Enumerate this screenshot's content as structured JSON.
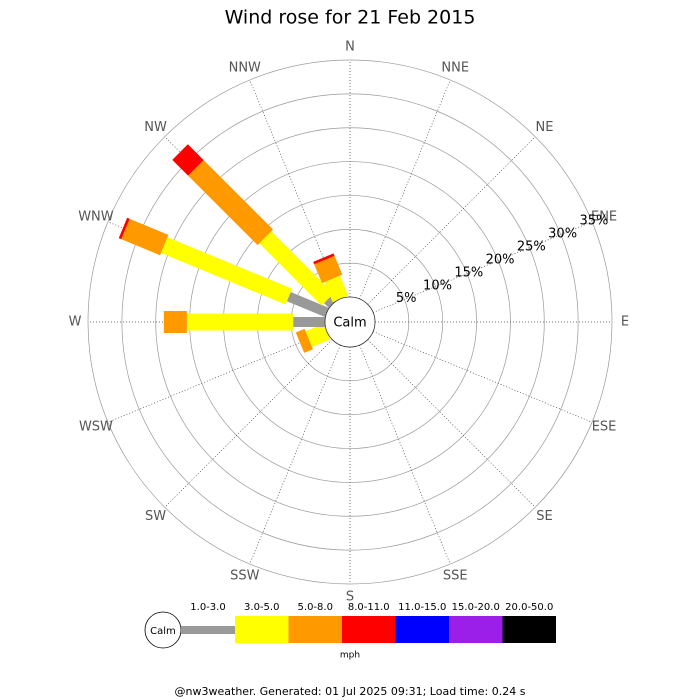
{
  "chart_data": {
    "type": "windrose",
    "title": "Wind rose for 21 Feb 2015",
    "categories": [
      "N",
      "NNE",
      "NE",
      "ENE",
      "E",
      "ESE",
      "SE",
      "SSE",
      "S",
      "SSW",
      "SW",
      "WSW",
      "W",
      "WNW",
      "NW",
      "NNW"
    ],
    "series": [
      {
        "name": "1.0-3.0",
        "color": "#999999",
        "values": [
          0,
          0,
          0,
          0,
          0,
          0,
          0,
          0,
          0,
          0,
          0,
          0,
          4.7,
          6.1,
          1.0,
          0
        ]
      },
      {
        "name": "3.0-5.0",
        "color": "#ffff00",
        "values": [
          0,
          0,
          0,
          0,
          0,
          0,
          0,
          0,
          0,
          0,
          0,
          2.9,
          15.7,
          19.9,
          13.0,
          3.2
        ]
      },
      {
        "name": "5.0-8.0",
        "color": "#ff9900",
        "values": [
          0,
          0,
          0,
          0,
          0,
          0,
          0,
          0,
          0,
          0,
          0,
          1.4,
          3.4,
          6.2,
          14.5,
          3.0
        ]
      },
      {
        "name": "8.0-11.0",
        "color": "#ff0000",
        "values": [
          0,
          0,
          0,
          0,
          0,
          0,
          0,
          0,
          0,
          0,
          0,
          0,
          0,
          0.4,
          3.3,
          0.4
        ]
      },
      {
        "name": "11.0-15.0",
        "color": "#0000ff",
        "values": [
          0,
          0,
          0,
          0,
          0,
          0,
          0,
          0,
          0,
          0,
          0,
          0,
          0,
          0,
          0,
          0
        ]
      },
      {
        "name": "15.0-20.0",
        "color": "#9b1fe8",
        "values": [
          0,
          0,
          0,
          0,
          0,
          0,
          0,
          0,
          0,
          0,
          0,
          0,
          0,
          0,
          0,
          0
        ]
      },
      {
        "name": "20.0-50.0",
        "color": "#000000",
        "values": [
          0,
          0,
          0,
          0,
          0,
          0,
          0,
          0,
          0,
          0,
          0,
          0,
          0,
          0,
          0,
          0
        ]
      }
    ],
    "rlim": [
      0,
      35
    ],
    "rticks": [
      {
        "value": 5,
        "label": "5%"
      },
      {
        "value": 10,
        "label": "10%"
      },
      {
        "value": 15,
        "label": "15%"
      },
      {
        "value": 20,
        "label": "20%"
      },
      {
        "value": 25,
        "label": "25%"
      },
      {
        "value": 30,
        "label": "30%"
      },
      {
        "value": 35,
        "label": "35%"
      }
    ],
    "calm_label": "Calm",
    "legend_unit": "mph",
    "footer": "@nw3weather. Generated: 01 Jul 2025 09:31; Load time: 0.24 s"
  }
}
